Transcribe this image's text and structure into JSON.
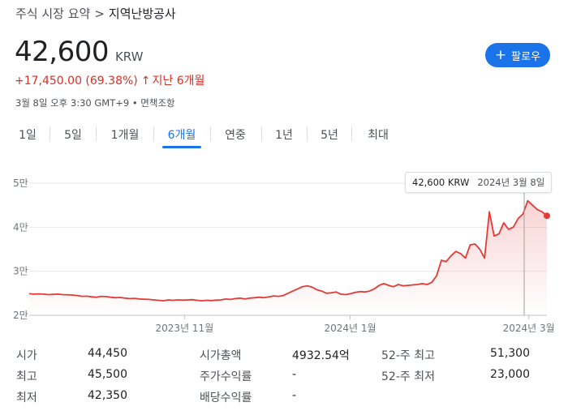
{
  "breadcrumb": {
    "root": "주식 시장 요약",
    "separator": ">",
    "current": "지역난방공사"
  },
  "quote": {
    "price": "42,600",
    "currency": "KRW",
    "change": "+17,450.00 (69.38%)",
    "change_arrow": "↑",
    "change_period": "지난 6개월",
    "timestamp": "3월 8일 오후 3:30 GMT+9 • 면책조항"
  },
  "follow_button": {
    "icon": "plus-icon",
    "label": "팔로우"
  },
  "tabs": [
    {
      "label": "1일",
      "active": false
    },
    {
      "label": "5일",
      "active": false
    },
    {
      "label": "1개월",
      "active": false
    },
    {
      "label": "6개월",
      "active": true
    },
    {
      "label": "연중",
      "active": false
    },
    {
      "label": "1년",
      "active": false
    },
    {
      "label": "5년",
      "active": false
    },
    {
      "label": "최대",
      "active": false
    }
  ],
  "tooltip": {
    "price": "42,600 KRW",
    "date": "2024년 3월 8일"
  },
  "colors": {
    "line": "#e53935",
    "accent": "#1a73e8",
    "down": "#d93025"
  },
  "chart_data": {
    "type": "area",
    "y_tick_labels": [
      "5만",
      "4만",
      "3만",
      "2만"
    ],
    "y_ticks": [
      50000,
      40000,
      30000,
      20000
    ],
    "ylim": [
      20000,
      50000
    ],
    "x_tick_labels": [
      "2023년 11월",
      "2024년 1월",
      "2024년 3월"
    ],
    "x_ticks": [
      0.3,
      0.62,
      0.965
    ],
    "grid": "horizontal",
    "series": [
      {
        "values": [
          24900,
          24800,
          24850,
          24800,
          24700,
          24750,
          24800,
          24700,
          24650,
          24600,
          24500,
          24300,
          24350,
          24200,
          24100,
          24300,
          24250,
          24100,
          24000,
          24050,
          23900,
          23800,
          23850,
          23700,
          23650,
          23600,
          23500,
          23400,
          23300,
          23500,
          23400,
          23500,
          23450,
          23500,
          23550,
          23400,
          23300,
          23400,
          23350,
          23450,
          23500,
          23700,
          23600,
          23800,
          23900,
          23700,
          23900,
          24000,
          24100,
          24000,
          24200,
          24400,
          24300,
          24500,
          25000,
          25500,
          26000,
          26500,
          26700,
          26400,
          25800,
          25500,
          25000,
          25100,
          25300,
          24800,
          24700,
          24900,
          25200,
          25400,
          25300,
          25500,
          26000,
          26800,
          27200,
          26800,
          26500,
          27000,
          26700,
          26800,
          26900,
          27000,
          27200,
          27000,
          27500,
          29000,
          32500,
          32200,
          33500,
          34500,
          34000,
          33000,
          36000,
          36200,
          35000,
          33000,
          43500,
          38000,
          38500,
          41000,
          39500,
          40000,
          42000,
          43000,
          46000,
          45000,
          44000,
          43500,
          42600
        ],
        "last_value": 42600
      }
    ]
  },
  "stats": [
    {
      "label": "시가",
      "value": "44,450"
    },
    {
      "label": "최고",
      "value": "45,500"
    },
    {
      "label": "최저",
      "value": "42,350"
    },
    {
      "label": "시가총액",
      "value": "4932.54억"
    },
    {
      "label": "주가수익률",
      "value": "-"
    },
    {
      "label": "배당수익률",
      "value": "-"
    },
    {
      "label": "52-주 최고",
      "value": "51,300"
    },
    {
      "label": "52-주 최저",
      "value": "23,000"
    }
  ]
}
